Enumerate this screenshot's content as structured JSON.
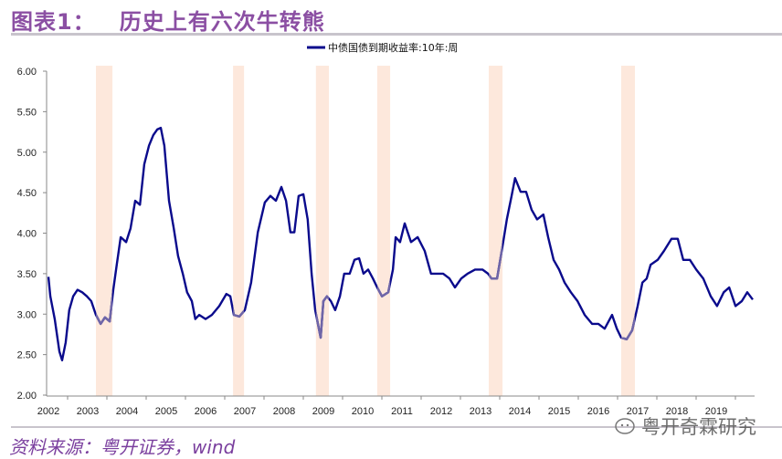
{
  "header": {
    "title_prefix": "图表1：",
    "title": "历史上有六次牛转熊"
  },
  "footer": {
    "source": "资料来源：粤开证券，wind",
    "watermark": "粤开奇霖研究"
  },
  "chart_data": {
    "type": "line",
    "title": "",
    "xlabel": "",
    "ylabel": "",
    "legend_position": "top-center",
    "grid": false,
    "ylim": [
      2.0,
      6.0
    ],
    "yticks": [
      "2.00",
      "2.50",
      "3.00",
      "3.50",
      "4.00",
      "4.50",
      "5.00",
      "5.50",
      "6.00"
    ],
    "xticks": [
      "2002",
      "2003",
      "2004",
      "2005",
      "2006",
      "2007",
      "2008",
      "2009",
      "2010",
      "2011",
      "2012",
      "2013",
      "2014",
      "2015",
      "2016",
      "2017",
      "2018",
      "2019"
    ],
    "colors": {
      "line": "#0a0a8c",
      "highlight_line": "#6f66a8",
      "band": "#fde8dc"
    },
    "shaded_periods": [
      [
        2003.21,
        2003.63
      ],
      [
        2006.7,
        2006.98
      ],
      [
        2008.81,
        2009.14
      ],
      [
        2010.37,
        2010.7
      ],
      [
        2013.21,
        2013.56
      ],
      [
        2016.58,
        2016.93
      ]
    ],
    "series": [
      {
        "name": "中债国债到期收益率:10年:周",
        "x": [
          2002.0,
          2002.05,
          2002.16,
          2002.28,
          2002.35,
          2002.44,
          2002.53,
          2002.63,
          2002.74,
          2002.86,
          2002.98,
          2003.09,
          2003.21,
          2003.33,
          2003.44,
          2003.56,
          2003.65,
          2003.74,
          2003.84,
          2003.98,
          2004.09,
          2004.21,
          2004.33,
          2004.44,
          2004.56,
          2004.67,
          2004.77,
          2004.86,
          2004.95,
          2005.07,
          2005.19,
          2005.3,
          2005.42,
          2005.53,
          2005.65,
          2005.74,
          2005.84,
          2006.0,
          2006.16,
          2006.35,
          2006.53,
          2006.63,
          2006.72,
          2006.86,
          2007.0,
          2007.16,
          2007.33,
          2007.51,
          2007.65,
          2007.79,
          2007.93,
          2008.05,
          2008.16,
          2008.26,
          2008.37,
          2008.49,
          2008.6,
          2008.7,
          2008.79,
          2008.86,
          2008.93,
          2009.0,
          2009.09,
          2009.19,
          2009.3,
          2009.42,
          2009.53,
          2009.67,
          2009.79,
          2009.91,
          2010.02,
          2010.14,
          2010.26,
          2010.37,
          2010.49,
          2010.65,
          2010.77,
          2010.84,
          2010.95,
          2011.07,
          2011.23,
          2011.4,
          2011.58,
          2011.74,
          2011.88,
          2012.05,
          2012.21,
          2012.35,
          2012.51,
          2012.67,
          2012.86,
          2013.05,
          2013.19,
          2013.28,
          2013.42,
          2013.56,
          2013.67,
          2013.79,
          2013.88,
          2014.02,
          2014.16,
          2014.3,
          2014.44,
          2014.6,
          2014.72,
          2014.86,
          2015.0,
          2015.14,
          2015.3,
          2015.47,
          2015.65,
          2015.84,
          2016.0,
          2016.16,
          2016.35,
          2016.47,
          2016.58,
          2016.72,
          2016.86,
          2017.0,
          2017.12,
          2017.23,
          2017.33,
          2017.51,
          2017.67,
          2017.86,
          2018.02,
          2018.16,
          2018.33,
          2018.49,
          2018.67,
          2018.86,
          2019.02,
          2019.19,
          2019.33,
          2019.49,
          2019.65,
          2019.79,
          2019.93
        ],
        "y": [
          3.46,
          3.22,
          2.94,
          2.54,
          2.43,
          2.65,
          3.05,
          3.22,
          3.3,
          3.27,
          3.22,
          3.16,
          2.99,
          2.88,
          2.96,
          2.91,
          3.3,
          3.61,
          3.95,
          3.89,
          4.06,
          4.4,
          4.35,
          4.85,
          5.08,
          5.21,
          5.28,
          5.3,
          5.08,
          4.4,
          4.06,
          3.72,
          3.5,
          3.27,
          3.16,
          2.94,
          2.99,
          2.94,
          2.99,
          3.1,
          3.25,
          3.22,
          2.99,
          2.97,
          3.05,
          3.39,
          4.01,
          4.38,
          4.46,
          4.4,
          4.57,
          4.4,
          4.01,
          4.01,
          4.46,
          4.48,
          4.17,
          3.5,
          3.05,
          2.88,
          2.71,
          3.16,
          3.22,
          3.16,
          3.05,
          3.22,
          3.5,
          3.5,
          3.67,
          3.69,
          3.5,
          3.55,
          3.44,
          3.33,
          3.22,
          3.27,
          3.55,
          3.95,
          3.89,
          4.12,
          3.89,
          3.95,
          3.78,
          3.5,
          3.5,
          3.5,
          3.44,
          3.33,
          3.44,
          3.5,
          3.55,
          3.55,
          3.5,
          3.44,
          3.44,
          3.84,
          4.17,
          4.46,
          4.68,
          4.51,
          4.51,
          4.29,
          4.17,
          4.23,
          3.95,
          3.67,
          3.55,
          3.39,
          3.27,
          3.16,
          2.99,
          2.88,
          2.88,
          2.82,
          2.99,
          2.82,
          2.71,
          2.69,
          2.8,
          3.1,
          3.39,
          3.44,
          3.61,
          3.67,
          3.78,
          3.93,
          3.93,
          3.67,
          3.67,
          3.55,
          3.44,
          3.22,
          3.1,
          3.27,
          3.33,
          3.1,
          3.16,
          3.27,
          3.18
        ]
      }
    ]
  }
}
